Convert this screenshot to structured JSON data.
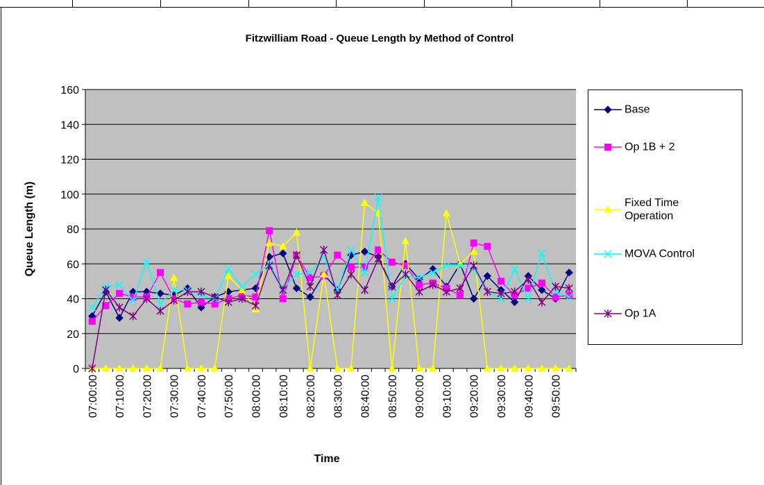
{
  "chart_data": {
    "type": "line",
    "title": "Fitzwilliam Road - Queue Length by Method of Control",
    "x_label": "Time",
    "y_label": "Queue Length (m)",
    "categories": [
      "07:00:00",
      null,
      "07:10:00",
      null,
      "07:20:00",
      null,
      "07:30:00",
      null,
      "07:40:00",
      null,
      "07:50:00",
      null,
      "08:00:00",
      null,
      "08:10:00",
      null,
      "08:20:00",
      null,
      "08:30:00",
      null,
      "08:40:00",
      null,
      "08:50:00",
      null,
      "09:00:00",
      null,
      "09:10:00",
      null,
      "09:20:00",
      null,
      "09:30:00",
      null,
      "09:40:00",
      null,
      "09:50:00",
      null
    ],
    "ylim": [
      0,
      160
    ],
    "yticks": [
      0,
      20,
      40,
      60,
      80,
      100,
      120,
      140,
      160
    ],
    "grid": true,
    "legend": "right",
    "series": [
      {
        "name": "Base",
        "color": "#000080",
        "marker": "diamond",
        "values": [
          30,
          44,
          29,
          44,
          44,
          43,
          42,
          46,
          35,
          41,
          44,
          45,
          46,
          64,
          66,
          46,
          41,
          54,
          45,
          65,
          67,
          64,
          47,
          60,
          51,
          57,
          47,
          60,
          40,
          53,
          45,
          38,
          53,
          45,
          40,
          55
        ]
      },
      {
        "name": "Op 1B + 2",
        "color": "#ff00ff",
        "marker": "square",
        "values": [
          27,
          36,
          43,
          41,
          41,
          55,
          40,
          37,
          38,
          37,
          40,
          42,
          41,
          79,
          40,
          65,
          52,
          53,
          65,
          58,
          58,
          68,
          61,
          59,
          48,
          49,
          46,
          42,
          72,
          70,
          50,
          42,
          46,
          49,
          41,
          42
        ]
      },
      {
        "name": "Fixed Time Operation",
        "color": "#ffff00",
        "marker": "triangle",
        "values": [
          0,
          0,
          0,
          0,
          0,
          0,
          52,
          0,
          0,
          0,
          53,
          45,
          34,
          72,
          70,
          78,
          0,
          54,
          0,
          0,
          95,
          89,
          0,
          73,
          0,
          0,
          89,
          60,
          67,
          0,
          0,
          0,
          0,
          0,
          0,
          0
        ]
      },
      {
        "name": "MOVA Control",
        "color": "#00ffff",
        "marker": "x",
        "values": [
          35,
          47,
          48,
          39,
          61,
          37,
          45,
          45,
          42,
          40,
          57,
          47,
          54,
          60,
          46,
          54,
          55,
          64,
          45,
          68,
          55,
          98,
          40,
          53,
          52,
          55,
          59,
          59,
          57,
          44,
          40,
          57,
          40,
          66,
          44,
          41
        ]
      },
      {
        "name": "Op 1A",
        "color": "#800080",
        "marker": "asterisk",
        "values": [
          0,
          45,
          35,
          30,
          40,
          33,
          39,
          44,
          44,
          41,
          38,
          40,
          36,
          59,
          45,
          65,
          47,
          68,
          42,
          54,
          45,
          63,
          47,
          54,
          44,
          48,
          44,
          46,
          59,
          44,
          43,
          44,
          51,
          38,
          47,
          46
        ]
      }
    ]
  }
}
